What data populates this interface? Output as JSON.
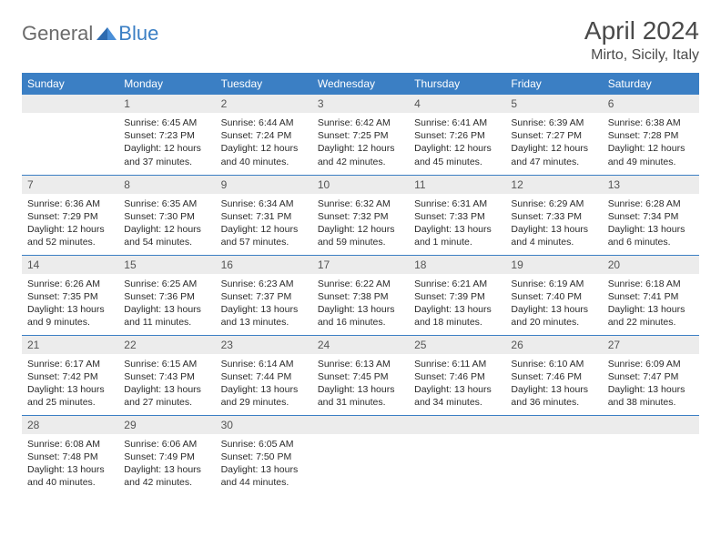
{
  "logo": {
    "general": "General",
    "blue": "Blue"
  },
  "title": "April 2024",
  "location": "Mirto, Sicily, Italy",
  "colors": {
    "header_bg": "#3b7fc4",
    "header_text": "#ffffff",
    "daynum_bg": "#ececec",
    "row_border": "#3b7fc4",
    "text": "#2a2a2a",
    "title_text": "#4a4a4a",
    "logo_gray": "#6b6b6b",
    "logo_blue": "#3b7fc4"
  },
  "weekdays": [
    "Sunday",
    "Monday",
    "Tuesday",
    "Wednesday",
    "Thursday",
    "Friday",
    "Saturday"
  ],
  "weeks": [
    [
      null,
      {
        "n": "1",
        "sr": "Sunrise: 6:45 AM",
        "ss": "Sunset: 7:23 PM",
        "d1": "Daylight: 12 hours",
        "d2": "and 37 minutes."
      },
      {
        "n": "2",
        "sr": "Sunrise: 6:44 AM",
        "ss": "Sunset: 7:24 PM",
        "d1": "Daylight: 12 hours",
        "d2": "and 40 minutes."
      },
      {
        "n": "3",
        "sr": "Sunrise: 6:42 AM",
        "ss": "Sunset: 7:25 PM",
        "d1": "Daylight: 12 hours",
        "d2": "and 42 minutes."
      },
      {
        "n": "4",
        "sr": "Sunrise: 6:41 AM",
        "ss": "Sunset: 7:26 PM",
        "d1": "Daylight: 12 hours",
        "d2": "and 45 minutes."
      },
      {
        "n": "5",
        "sr": "Sunrise: 6:39 AM",
        "ss": "Sunset: 7:27 PM",
        "d1": "Daylight: 12 hours",
        "d2": "and 47 minutes."
      },
      {
        "n": "6",
        "sr": "Sunrise: 6:38 AM",
        "ss": "Sunset: 7:28 PM",
        "d1": "Daylight: 12 hours",
        "d2": "and 49 minutes."
      }
    ],
    [
      {
        "n": "7",
        "sr": "Sunrise: 6:36 AM",
        "ss": "Sunset: 7:29 PM",
        "d1": "Daylight: 12 hours",
        "d2": "and 52 minutes."
      },
      {
        "n": "8",
        "sr": "Sunrise: 6:35 AM",
        "ss": "Sunset: 7:30 PM",
        "d1": "Daylight: 12 hours",
        "d2": "and 54 minutes."
      },
      {
        "n": "9",
        "sr": "Sunrise: 6:34 AM",
        "ss": "Sunset: 7:31 PM",
        "d1": "Daylight: 12 hours",
        "d2": "and 57 minutes."
      },
      {
        "n": "10",
        "sr": "Sunrise: 6:32 AM",
        "ss": "Sunset: 7:32 PM",
        "d1": "Daylight: 12 hours",
        "d2": "and 59 minutes."
      },
      {
        "n": "11",
        "sr": "Sunrise: 6:31 AM",
        "ss": "Sunset: 7:33 PM",
        "d1": "Daylight: 13 hours",
        "d2": "and 1 minute."
      },
      {
        "n": "12",
        "sr": "Sunrise: 6:29 AM",
        "ss": "Sunset: 7:33 PM",
        "d1": "Daylight: 13 hours",
        "d2": "and 4 minutes."
      },
      {
        "n": "13",
        "sr": "Sunrise: 6:28 AM",
        "ss": "Sunset: 7:34 PM",
        "d1": "Daylight: 13 hours",
        "d2": "and 6 minutes."
      }
    ],
    [
      {
        "n": "14",
        "sr": "Sunrise: 6:26 AM",
        "ss": "Sunset: 7:35 PM",
        "d1": "Daylight: 13 hours",
        "d2": "and 9 minutes."
      },
      {
        "n": "15",
        "sr": "Sunrise: 6:25 AM",
        "ss": "Sunset: 7:36 PM",
        "d1": "Daylight: 13 hours",
        "d2": "and 11 minutes."
      },
      {
        "n": "16",
        "sr": "Sunrise: 6:23 AM",
        "ss": "Sunset: 7:37 PM",
        "d1": "Daylight: 13 hours",
        "d2": "and 13 minutes."
      },
      {
        "n": "17",
        "sr": "Sunrise: 6:22 AM",
        "ss": "Sunset: 7:38 PM",
        "d1": "Daylight: 13 hours",
        "d2": "and 16 minutes."
      },
      {
        "n": "18",
        "sr": "Sunrise: 6:21 AM",
        "ss": "Sunset: 7:39 PM",
        "d1": "Daylight: 13 hours",
        "d2": "and 18 minutes."
      },
      {
        "n": "19",
        "sr": "Sunrise: 6:19 AM",
        "ss": "Sunset: 7:40 PM",
        "d1": "Daylight: 13 hours",
        "d2": "and 20 minutes."
      },
      {
        "n": "20",
        "sr": "Sunrise: 6:18 AM",
        "ss": "Sunset: 7:41 PM",
        "d1": "Daylight: 13 hours",
        "d2": "and 22 minutes."
      }
    ],
    [
      {
        "n": "21",
        "sr": "Sunrise: 6:17 AM",
        "ss": "Sunset: 7:42 PM",
        "d1": "Daylight: 13 hours",
        "d2": "and 25 minutes."
      },
      {
        "n": "22",
        "sr": "Sunrise: 6:15 AM",
        "ss": "Sunset: 7:43 PM",
        "d1": "Daylight: 13 hours",
        "d2": "and 27 minutes."
      },
      {
        "n": "23",
        "sr": "Sunrise: 6:14 AM",
        "ss": "Sunset: 7:44 PM",
        "d1": "Daylight: 13 hours",
        "d2": "and 29 minutes."
      },
      {
        "n": "24",
        "sr": "Sunrise: 6:13 AM",
        "ss": "Sunset: 7:45 PM",
        "d1": "Daylight: 13 hours",
        "d2": "and 31 minutes."
      },
      {
        "n": "25",
        "sr": "Sunrise: 6:11 AM",
        "ss": "Sunset: 7:46 PM",
        "d1": "Daylight: 13 hours",
        "d2": "and 34 minutes."
      },
      {
        "n": "26",
        "sr": "Sunrise: 6:10 AM",
        "ss": "Sunset: 7:46 PM",
        "d1": "Daylight: 13 hours",
        "d2": "and 36 minutes."
      },
      {
        "n": "27",
        "sr": "Sunrise: 6:09 AM",
        "ss": "Sunset: 7:47 PM",
        "d1": "Daylight: 13 hours",
        "d2": "and 38 minutes."
      }
    ],
    [
      {
        "n": "28",
        "sr": "Sunrise: 6:08 AM",
        "ss": "Sunset: 7:48 PM",
        "d1": "Daylight: 13 hours",
        "d2": "and 40 minutes."
      },
      {
        "n": "29",
        "sr": "Sunrise: 6:06 AM",
        "ss": "Sunset: 7:49 PM",
        "d1": "Daylight: 13 hours",
        "d2": "and 42 minutes."
      },
      {
        "n": "30",
        "sr": "Sunrise: 6:05 AM",
        "ss": "Sunset: 7:50 PM",
        "d1": "Daylight: 13 hours",
        "d2": "and 44 minutes."
      },
      null,
      null,
      null,
      null
    ]
  ]
}
